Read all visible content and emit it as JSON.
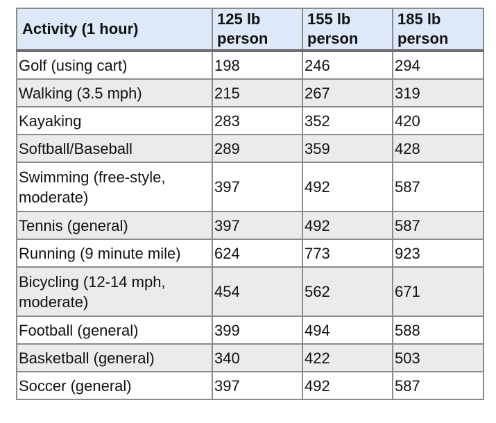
{
  "table": {
    "headers": [
      "Activity (1 hour)",
      "125 lb person",
      "155 lb person",
      "185 lb person"
    ],
    "rows": [
      {
        "activity": "Golf (using cart)",
        "v125": "198",
        "v155": "246",
        "v185": "294"
      },
      {
        "activity": "Walking (3.5 mph)",
        "v125": "215",
        "v155": "267",
        "v185": "319"
      },
      {
        "activity": "Kayaking",
        "v125": "283",
        "v155": "352",
        "v185": "420"
      },
      {
        "activity": "Softball/Baseball",
        "v125": "289",
        "v155": "359",
        "v185": "428"
      },
      {
        "activity": "Swimming (free-style, moderate)",
        "v125": "397",
        "v155": "492",
        "v185": "587"
      },
      {
        "activity": "Tennis (general)",
        "v125": "397",
        "v155": "492",
        "v185": "587"
      },
      {
        "activity": "Running (9 minute mile)",
        "v125": "624",
        "v155": "773",
        "v185": "923"
      },
      {
        "activity": "Bicycling (12-14 mph, moderate)",
        "v125": "454",
        "v155": "562",
        "v185": "671"
      },
      {
        "activity": "Football (general)",
        "v125": "399",
        "v155": "494",
        "v185": "588"
      },
      {
        "activity": "Basketball (general)",
        "v125": "340",
        "v155": "422",
        "v185": "503"
      },
      {
        "activity": "Soccer (general)",
        "v125": "397",
        "v155": "492",
        "v185": "587"
      }
    ]
  },
  "colors": {
    "header_bg": "#dde9f8",
    "stripe_bg": "#ebebeb",
    "border": "#8a8a8a"
  }
}
